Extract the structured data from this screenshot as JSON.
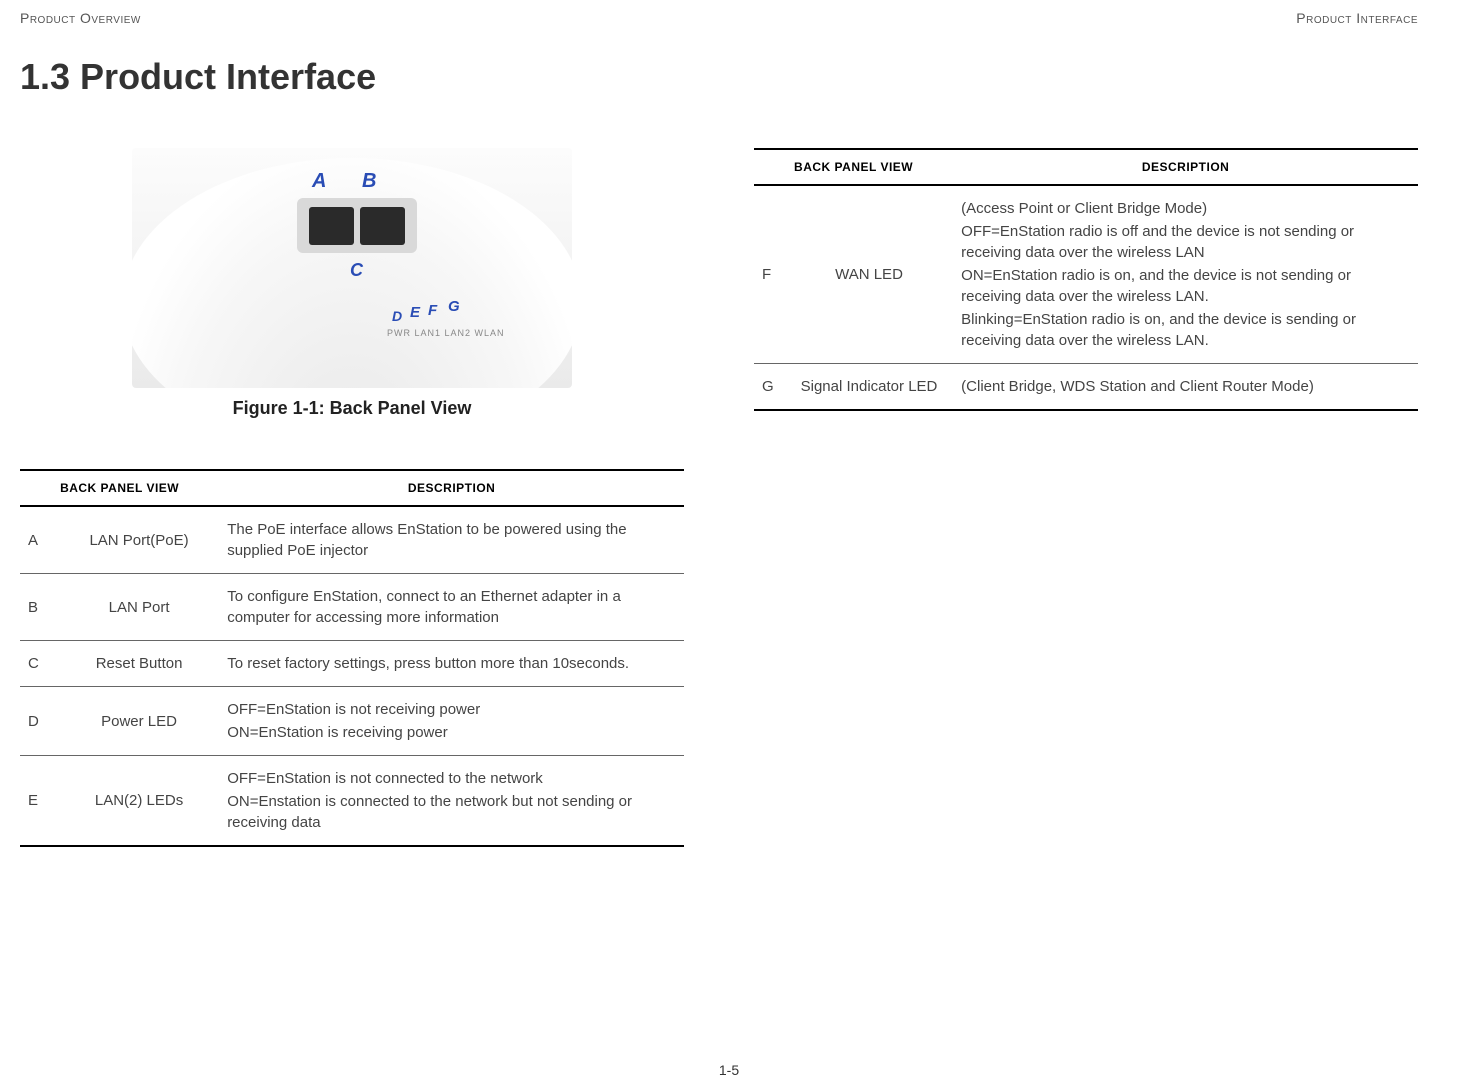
{
  "header": {
    "left": "Product Overview",
    "right": "Product Interface"
  },
  "heading": "1.3 Product Interface",
  "figure": {
    "caption": "Figure 1-1: Back Panel View",
    "led_strip_text": "PWR  LAN1 LAN2 WLAN",
    "labels": {
      "A": "A",
      "B": "B",
      "C": "C",
      "D": "D",
      "E": "E",
      "F": "F",
      "G": "G"
    }
  },
  "table_headers": {
    "view": "BACK PANEL VIEW",
    "desc": "DESCRIPTION"
  },
  "left_rows": [
    {
      "key": "A",
      "name": "LAN Port(PoE)",
      "desc": [
        "The PoE interface allows EnStation to be powered using the supplied PoE injector"
      ]
    },
    {
      "key": "B",
      "name": "LAN Port",
      "desc": [
        "To configure EnStation, connect to an Ethernet adapter in a computer for accessing more information"
      ]
    },
    {
      "key": "C",
      "name": "Reset Button",
      "desc": [
        "To reset factory settings, press button more than 10seconds."
      ]
    },
    {
      "key": "D",
      "name": "Power LED",
      "desc": [
        "OFF=EnStation is not receiving power",
        "ON=EnStation is receiving power"
      ]
    },
    {
      "key": "E",
      "name": "LAN(2) LEDs",
      "desc": [
        "OFF=EnStation is not connected to the network",
        "ON=Enstation is connected to the network but not sending or receiving data"
      ]
    }
  ],
  "right_rows": [
    {
      "key": "F",
      "name": "WAN LED",
      "desc": [
        "(Access Point or Client Bridge Mode)",
        "OFF=EnStation radio is off and the device is not sending or receiving data over the wireless LAN",
        "ON=EnStation radio is on, and the device is not sending or receiving data over the wireless LAN.",
        "Blinking=EnStation radio is on, and the device is sending or receiving data over the wireless LAN."
      ]
    },
    {
      "key": "G",
      "name": "Signal Indicator LED",
      "desc": [
        "(Client Bridge, WDS Station and Client Router Mode)"
      ]
    }
  ],
  "page_number": "1-5",
  "colors": {
    "label_color": "#2a4db5",
    "text_color": "#333333",
    "border_heavy": "#000000",
    "border_light": "#666666",
    "background": "#ffffff"
  }
}
